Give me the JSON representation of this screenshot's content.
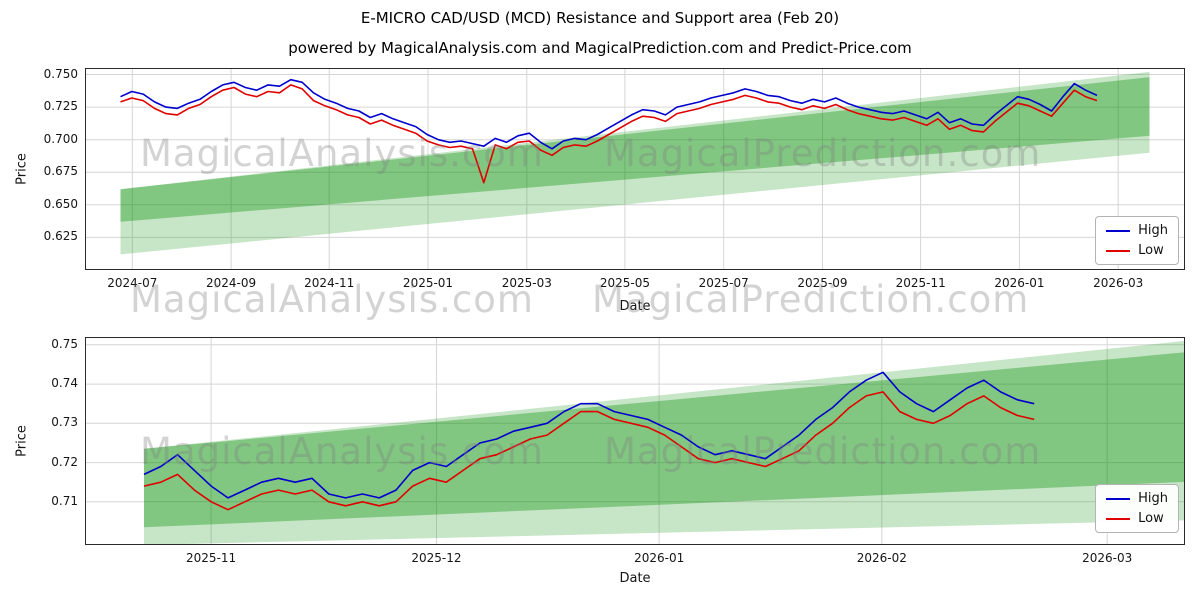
{
  "header": {
    "title": "E-MICRO CAD/USD (MCD) Resistance and Support area (Feb 20)",
    "subtitle": "powered by MagicalAnalysis.com and MagicalPrediction.com and Predict-Price.com"
  },
  "watermarks": {
    "left": "MagicalAnalysis.com",
    "right": "MagicalPrediction.com"
  },
  "colors": {
    "high": "#0000cd",
    "low": "#e00000",
    "band_light": "rgba(0,140,0,0.22)",
    "band_dark": "rgba(0,140,0,0.35)",
    "grid": "#d6d6d6",
    "watermark": "rgba(128,128,128,0.35)"
  },
  "chart_data": [
    {
      "type": "line",
      "xlabel": "Date",
      "ylabel": "Price",
      "grid": true,
      "legend_position": "right",
      "xlim": [
        2024.42,
        2026.28
      ],
      "ylim": [
        0.6,
        0.755
      ],
      "xticks": [
        {
          "v": 2024.5,
          "label": "2024-07"
        },
        {
          "v": 2024.667,
          "label": "2024-09"
        },
        {
          "v": 2024.833,
          "label": "2024-11"
        },
        {
          "v": 2025.0,
          "label": "2025-01"
        },
        {
          "v": 2025.167,
          "label": "2025-03"
        },
        {
          "v": 2025.333,
          "label": "2025-05"
        },
        {
          "v": 2025.5,
          "label": "2025-07"
        },
        {
          "v": 2025.667,
          "label": "2025-09"
        },
        {
          "v": 2025.833,
          "label": "2025-11"
        },
        {
          "v": 2026.0,
          "label": "2026-01"
        },
        {
          "v": 2026.167,
          "label": "2026-03"
        }
      ],
      "yticks": [
        {
          "v": 0.75,
          "label": "0.750"
        },
        {
          "v": 0.725,
          "label": "0.725"
        },
        {
          "v": 0.7,
          "label": "0.700"
        },
        {
          "v": 0.675,
          "label": "0.675"
        },
        {
          "v": 0.65,
          "label": "0.650"
        },
        {
          "v": 0.625,
          "label": "0.625"
        }
      ],
      "x_start": 2024.48,
      "x_step": 0.0192,
      "series": [
        {
          "name": "High",
          "color": "high",
          "values": [
            0.733,
            0.737,
            0.735,
            0.729,
            0.725,
            0.724,
            0.728,
            0.731,
            0.737,
            0.742,
            0.744,
            0.74,
            0.738,
            0.742,
            0.741,
            0.746,
            0.744,
            0.736,
            0.731,
            0.728,
            0.724,
            0.722,
            0.717,
            0.72,
            0.716,
            0.713,
            0.71,
            0.704,
            0.7,
            0.698,
            0.699,
            0.697,
            0.695,
            0.701,
            0.698,
            0.703,
            0.705,
            0.698,
            0.693,
            0.699,
            0.701,
            0.7,
            0.704,
            0.709,
            0.714,
            0.719,
            0.723,
            0.722,
            0.719,
            0.725,
            0.727,
            0.729,
            0.732,
            0.734,
            0.736,
            0.739,
            0.737,
            0.734,
            0.733,
            0.73,
            0.728,
            0.731,
            0.729,
            0.732,
            0.728,
            0.725,
            0.723,
            0.721,
            0.72,
            0.722,
            0.719,
            0.716,
            0.721,
            0.713,
            0.716,
            0.712,
            0.711,
            0.719,
            0.726,
            0.733,
            0.731,
            0.727,
            0.722,
            0.733,
            0.743,
            0.738,
            0.734
          ]
        },
        {
          "name": "Low",
          "color": "low",
          "values": [
            0.729,
            0.732,
            0.73,
            0.724,
            0.72,
            0.719,
            0.724,
            0.727,
            0.733,
            0.738,
            0.74,
            0.735,
            0.733,
            0.737,
            0.736,
            0.742,
            0.739,
            0.73,
            0.726,
            0.723,
            0.719,
            0.717,
            0.712,
            0.715,
            0.711,
            0.708,
            0.705,
            0.699,
            0.696,
            0.694,
            0.695,
            0.693,
            0.667,
            0.696,
            0.693,
            0.698,
            0.699,
            0.692,
            0.688,
            0.694,
            0.696,
            0.695,
            0.699,
            0.704,
            0.709,
            0.714,
            0.718,
            0.717,
            0.714,
            0.72,
            0.722,
            0.724,
            0.727,
            0.729,
            0.731,
            0.734,
            0.732,
            0.729,
            0.728,
            0.725,
            0.723,
            0.726,
            0.724,
            0.727,
            0.723,
            0.72,
            0.718,
            0.716,
            0.715,
            0.717,
            0.714,
            0.711,
            0.716,
            0.708,
            0.711,
            0.707,
            0.706,
            0.714,
            0.721,
            0.728,
            0.726,
            0.722,
            0.718,
            0.728,
            0.738,
            0.733,
            0.73
          ]
        }
      ],
      "bands": [
        {
          "name": "support-resistance-outer",
          "color": "band_light",
          "points": [
            [
              2024.48,
              0.662
            ],
            [
              2026.22,
              0.752
            ],
            [
              2026.22,
              0.69
            ],
            [
              2024.48,
              0.612
            ]
          ]
        },
        {
          "name": "support-resistance-inner",
          "color": "band_dark",
          "points": [
            [
              2024.48,
              0.662
            ],
            [
              2026.22,
              0.748
            ],
            [
              2026.22,
              0.703
            ],
            [
              2024.48,
              0.637
            ]
          ]
        }
      ]
    },
    {
      "type": "line",
      "xlabel": "Date",
      "ylabel": "Price",
      "grid": true,
      "legend_position": "lower right",
      "xlim": [
        2025.786,
        2026.196
      ],
      "ylim": [
        0.699,
        0.752
      ],
      "xticks": [
        {
          "v": 2025.833,
          "label": "2025-11"
        },
        {
          "v": 2025.917,
          "label": "2025-12"
        },
        {
          "v": 2026.0,
          "label": "2026-01"
        },
        {
          "v": 2026.083,
          "label": "2026-02"
        },
        {
          "v": 2026.167,
          "label": "2026-03"
        }
      ],
      "yticks": [
        {
          "v": 0.75,
          "label": "0.75"
        },
        {
          "v": 0.74,
          "label": "0.74"
        },
        {
          "v": 0.73,
          "label": "0.73"
        },
        {
          "v": 0.72,
          "label": "0.72"
        },
        {
          "v": 0.71,
          "label": "0.71"
        }
      ],
      "x_start": 2025.808,
      "x_step": 0.00626,
      "series": [
        {
          "name": "High",
          "color": "high",
          "values": [
            0.717,
            0.719,
            0.722,
            0.718,
            0.714,
            0.711,
            0.713,
            0.715,
            0.716,
            0.715,
            0.716,
            0.712,
            0.711,
            0.712,
            0.711,
            0.713,
            0.718,
            0.72,
            0.719,
            0.722,
            0.725,
            0.726,
            0.728,
            0.729,
            0.73,
            0.733,
            0.735,
            0.735,
            0.733,
            0.732,
            0.731,
            0.729,
            0.727,
            0.724,
            0.722,
            0.723,
            0.722,
            0.721,
            0.724,
            0.727,
            0.731,
            0.734,
            0.738,
            0.741,
            0.743,
            0.738,
            0.735,
            0.733,
            0.736,
            0.739,
            0.741,
            0.738,
            0.736,
            0.735
          ]
        },
        {
          "name": "Low",
          "color": "low",
          "values": [
            0.714,
            0.715,
            0.717,
            0.713,
            0.71,
            0.708,
            0.71,
            0.712,
            0.713,
            0.712,
            0.713,
            0.71,
            0.709,
            0.71,
            0.709,
            0.71,
            0.714,
            0.716,
            0.715,
            0.718,
            0.721,
            0.722,
            0.724,
            0.726,
            0.727,
            0.73,
            0.733,
            0.733,
            0.731,
            0.73,
            0.729,
            0.727,
            0.724,
            0.721,
            0.72,
            0.721,
            0.72,
            0.719,
            0.721,
            0.723,
            0.727,
            0.73,
            0.734,
            0.737,
            0.738,
            0.733,
            0.731,
            0.73,
            0.732,
            0.735,
            0.737,
            0.734,
            0.732,
            0.731
          ]
        }
      ],
      "bands": [
        {
          "name": "support-resistance-outer",
          "color": "band_light",
          "points": [
            [
              2025.808,
              0.7235
            ],
            [
              2026.21,
              0.752
            ],
            [
              2026.21,
              0.7055
            ],
            [
              2025.808,
              0.699
            ]
          ]
        },
        {
          "name": "support-resistance-inner",
          "color": "band_dark",
          "points": [
            [
              2025.808,
              0.7235
            ],
            [
              2026.21,
              0.749
            ],
            [
              2026.21,
              0.7155
            ],
            [
              2025.808,
              0.7035
            ]
          ]
        }
      ]
    }
  ]
}
